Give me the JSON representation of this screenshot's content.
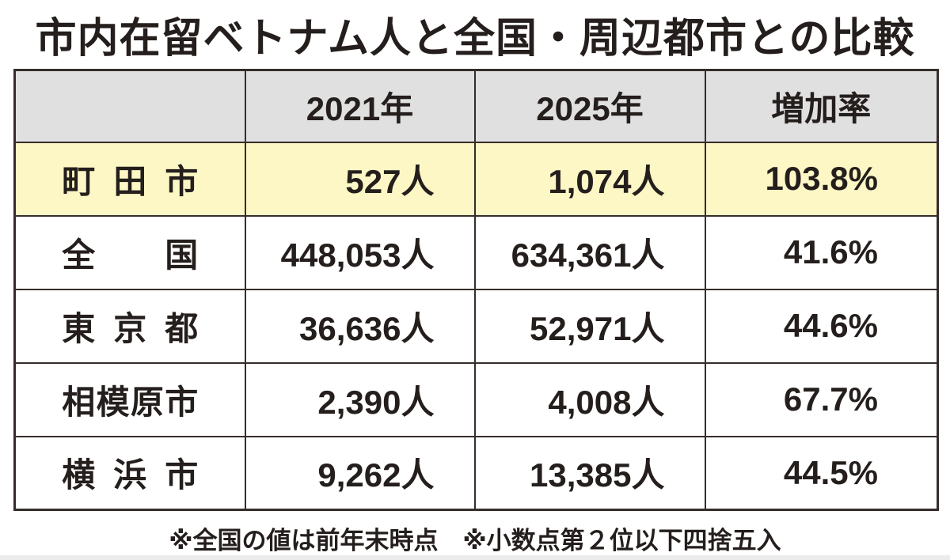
{
  "title": "市内在留ベトナム人と全国・周辺都市との比較",
  "table": {
    "columns": [
      "",
      "2021年",
      "2025年",
      "増加率"
    ],
    "rows": [
      {
        "label": "町田市",
        "y2021": "527人",
        "y2025": "1,074人",
        "rate": "103.8%"
      },
      {
        "label": "全国",
        "y2021": "448,053人",
        "y2025": "634,361人",
        "rate": "41.6%"
      },
      {
        "label": "東京都",
        "y2021": "36,636人",
        "y2025": "52,971人",
        "rate": "44.6%"
      },
      {
        "label": "相模原市",
        "y2021": "2,390人",
        "y2025": "4,008人",
        "rate": "67.7%"
      },
      {
        "label": "横浜市",
        "y2021": "9,262人",
        "y2025": "13,385人",
        "rate": "44.5%"
      }
    ],
    "highlighted_row": "町田市"
  },
  "footnote": "※全国の値は前年末時点　※小数点第２位以下四捨五入",
  "colors": {
    "header_bg": "#e0e0e0",
    "highlight_row_bg": "#fcf7c5",
    "border": "#362d2a",
    "text": "#241e1c",
    "bottom_strip": "#ebebeb"
  },
  "chart_data": {
    "type": "table",
    "title": "市内在留ベトナム人と全国・周辺都市との比較",
    "columns": [
      "",
      "2021年",
      "2025年",
      "増加率"
    ],
    "rows": [
      [
        "町田市",
        527,
        1074,
        "103.8%"
      ],
      [
        "全国",
        448053,
        634361,
        "41.6%"
      ],
      [
        "東京都",
        36636,
        52971,
        "44.6%"
      ],
      [
        "相模原市",
        2390,
        4008,
        "67.7%"
      ],
      [
        "横浜市",
        9262,
        13385,
        "44.5%"
      ]
    ],
    "unit_counts": "人",
    "highlighted_row": "町田市",
    "notes": "※全国の値は前年末時点　※小数点第２位以下四捨五入"
  }
}
